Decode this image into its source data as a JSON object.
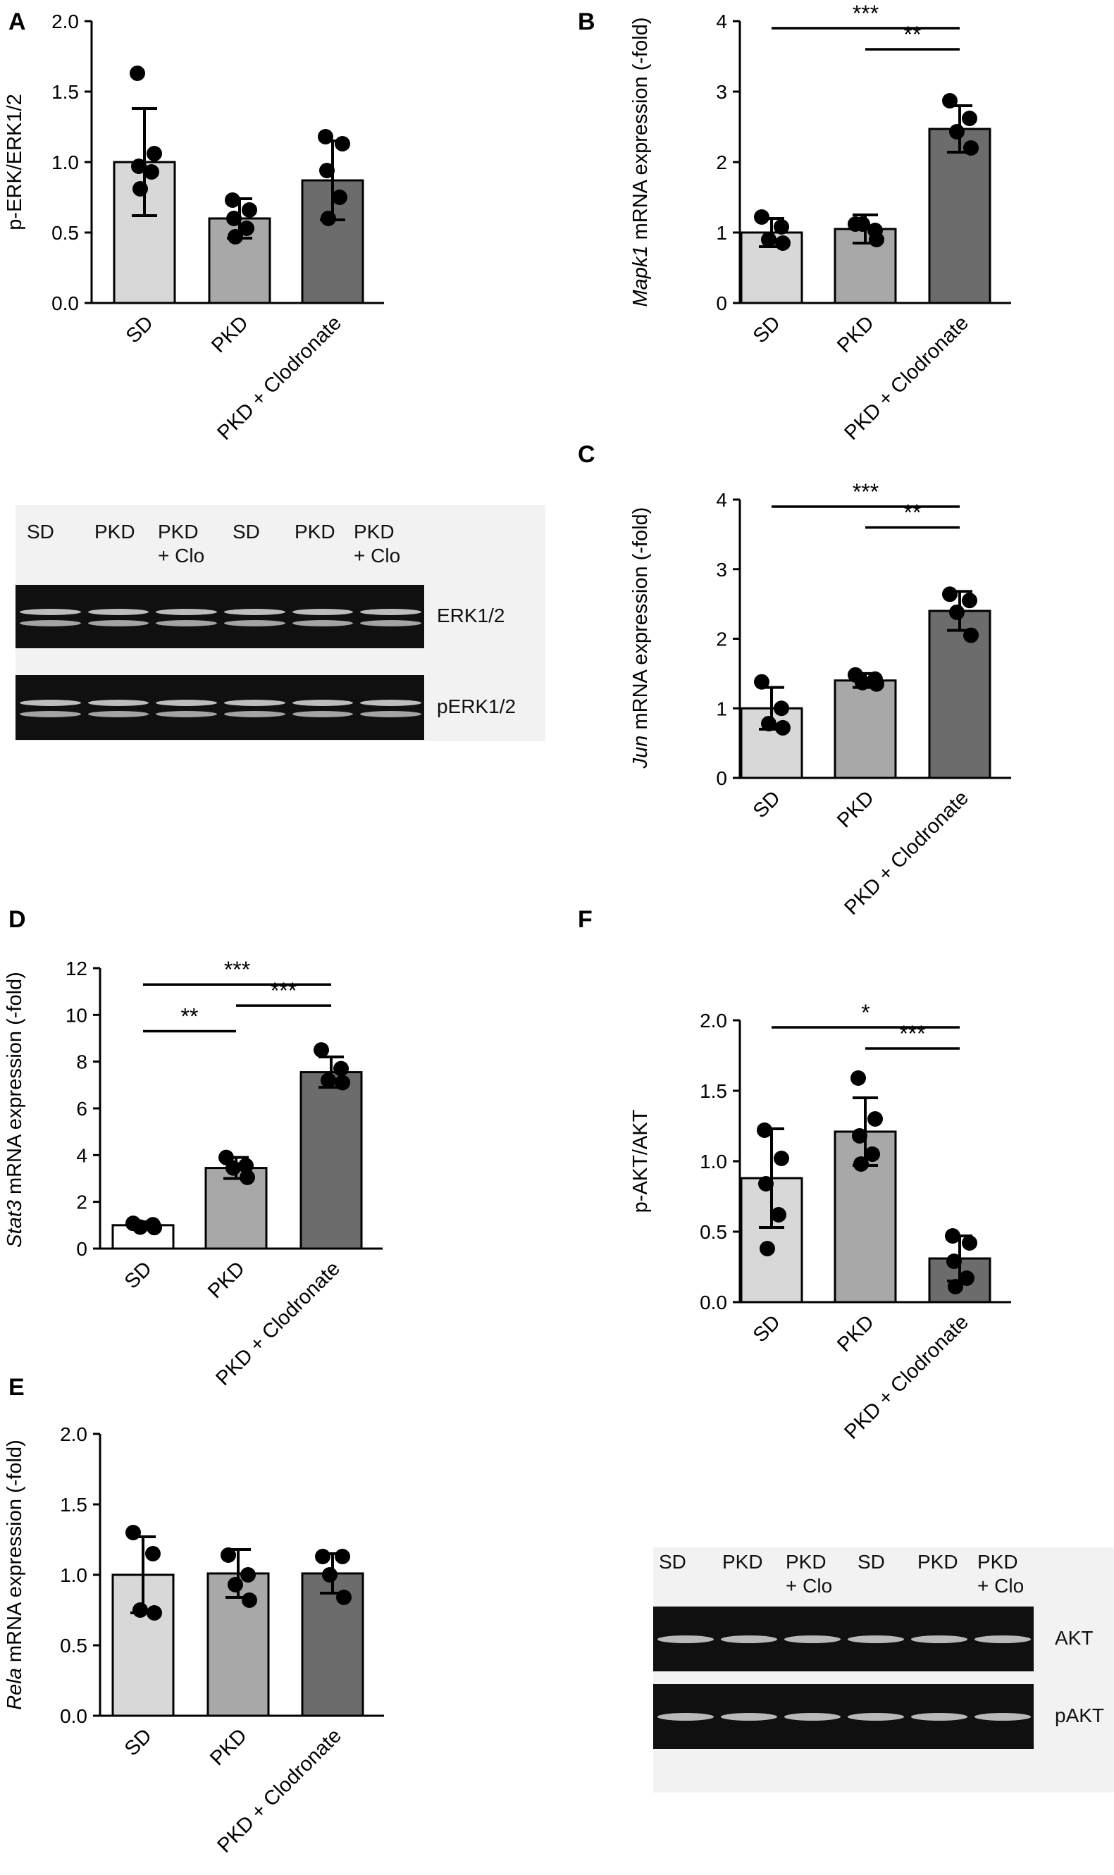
{
  "chart_data": [
    {
      "panel": "A",
      "type": "bar",
      "categories": [
        "SD",
        "PKD",
        "PKD + Clodronate"
      ],
      "ylabel": "p-ERK/ERK1/2",
      "ylim": [
        0,
        2.0
      ],
      "yticks": [
        "0.0",
        "0.5",
        "1.0",
        "1.5",
        "2.0"
      ],
      "values": [
        1.0,
        0.6,
        0.87
      ],
      "error": [
        0.38,
        0.14,
        0.28
      ],
      "points": [
        [
          1.63,
          1.06,
          0.97,
          0.93,
          0.81
        ],
        [
          0.73,
          0.66,
          0.6,
          0.53,
          0.47
        ],
        [
          1.18,
          1.13,
          0.94,
          0.75,
          0.6
        ]
      ],
      "significance": [],
      "colors": [
        "#d8d8d8",
        "#a8a8a8",
        "#6c6c6c"
      ]
    },
    {
      "panel": "B",
      "type": "bar",
      "categories": [
        "SD",
        "PKD",
        "PKD + Clodronate"
      ],
      "ylabel_italic": "Mapk1",
      "ylabel": " mRNA expression (-fold)",
      "ylim": [
        0,
        4
      ],
      "yticks": [
        "0",
        "1",
        "2",
        "3",
        "4"
      ],
      "values": [
        1.0,
        1.05,
        2.47
      ],
      "error": [
        0.2,
        0.2,
        0.33
      ],
      "points": [
        [
          1.22,
          1.08,
          0.9,
          0.85
        ],
        [
          1.12,
          1.03,
          1.12,
          0.9
        ],
        [
          2.87,
          2.62,
          2.43,
          2.2
        ]
      ],
      "significance": [
        {
          "from": 0,
          "to": 2,
          "label": "***"
        },
        {
          "from": 1,
          "to": 2,
          "label": "**"
        }
      ],
      "colors": [
        "#d8d8d8",
        "#a8a8a8",
        "#6c6c6c"
      ]
    },
    {
      "panel": "C",
      "type": "bar",
      "categories": [
        "SD",
        "PKD",
        "PKD + Clodronate"
      ],
      "ylabel_italic": "Jun",
      "ylabel": " mRNA expression (-fold)",
      "ylim": [
        0,
        4
      ],
      "yticks": [
        "0",
        "1",
        "2",
        "3",
        "4"
      ],
      "values": [
        1.0,
        1.4,
        2.4
      ],
      "error": [
        0.3,
        0.1,
        0.28
      ],
      "points": [
        [
          1.38,
          1.0,
          0.78,
          0.72
        ],
        [
          1.48,
          1.42,
          1.37,
          1.35
        ],
        [
          2.64,
          2.55,
          2.38,
          2.05
        ]
      ],
      "significance": [
        {
          "from": 0,
          "to": 2,
          "label": "***"
        },
        {
          "from": 1,
          "to": 2,
          "label": "**"
        }
      ],
      "colors": [
        "#d8d8d8",
        "#a8a8a8",
        "#6c6c6c"
      ]
    },
    {
      "panel": "D",
      "type": "bar",
      "categories": [
        "SD",
        "PKD",
        "PKD + Clodronate"
      ],
      "ylabel_italic": "Stat3",
      "ylabel": " mRNA expression (-fold)",
      "ylim": [
        0,
        12
      ],
      "yticks": [
        "0",
        "2",
        "4",
        "6",
        "8",
        "10",
        "12"
      ],
      "values": [
        1.0,
        3.45,
        7.55
      ],
      "error": [
        0.15,
        0.45,
        0.65
      ],
      "points": [
        [
          1.08,
          1.02,
          0.92,
          0.9
        ],
        [
          3.9,
          3.55,
          3.45,
          3.05
        ],
        [
          8.5,
          7.7,
          7.2,
          7.1
        ]
      ],
      "significance": [
        {
          "from": 0,
          "to": 2,
          "label": "***"
        },
        {
          "from": 0,
          "to": 1,
          "label": "**"
        },
        {
          "from": 1,
          "to": 2,
          "label": "***"
        }
      ],
      "colors": [
        "#ffffff",
        "#a8a8a8",
        "#6c6c6c"
      ]
    },
    {
      "panel": "E",
      "type": "bar",
      "categories": [
        "SD",
        "PKD",
        "PKD + Clodronate"
      ],
      "ylabel_italic": "Rela",
      "ylabel": " mRNA expression (-fold)",
      "ylim": [
        0,
        2.0
      ],
      "yticks": [
        "0.0",
        "0.5",
        "1.0",
        "1.5",
        "2.0"
      ],
      "values": [
        1.0,
        1.01,
        1.01
      ],
      "error": [
        0.27,
        0.17,
        0.14
      ],
      "points": [
        [
          1.3,
          1.15,
          0.75,
          0.73
        ],
        [
          1.14,
          1.0,
          0.93,
          0.82
        ],
        [
          1.13,
          1.13,
          1.0,
          0.84
        ]
      ],
      "significance": [],
      "colors": [
        "#d8d8d8",
        "#a8a8a8",
        "#6c6c6c"
      ]
    },
    {
      "panel": "F",
      "type": "bar",
      "categories": [
        "SD",
        "PKD",
        "PKD + Clodronate"
      ],
      "ylabel": "p-AKT/AKT",
      "ylim": [
        0,
        2.0
      ],
      "yticks": [
        "0.0",
        "0.5",
        "1.0",
        "1.5",
        "2.0"
      ],
      "values": [
        0.88,
        1.21,
        0.31
      ],
      "error": [
        0.35,
        0.24,
        0.16
      ],
      "points": [
        [
          1.22,
          1.02,
          0.84,
          0.62,
          0.38
        ],
        [
          1.59,
          1.3,
          1.18,
          1.05,
          0.98
        ],
        [
          0.47,
          0.42,
          0.29,
          0.17,
          0.11
        ]
      ],
      "significance": [
        {
          "from": 0,
          "to": 2,
          "label": "*"
        },
        {
          "from": 1,
          "to": 2,
          "label": "***"
        }
      ],
      "colors": [
        "#d8d8d8",
        "#a8a8a8",
        "#6c6c6c"
      ]
    }
  ],
  "blots": [
    {
      "id": "erk",
      "lanes": [
        "SD",
        "PKD",
        "PKD\n+ Clo",
        "SD",
        "PKD",
        "PKD\n+ Clo"
      ],
      "strips": [
        {
          "label": "ERK1/2",
          "doublet": true
        },
        {
          "label": "pERK1/2",
          "doublet": true
        }
      ]
    },
    {
      "id": "akt",
      "lanes": [
        "SD",
        "PKD",
        "PKD\n+ Clo",
        "SD",
        "PKD",
        "PKD\n+ Clo"
      ],
      "strips": [
        {
          "label": "AKT",
          "doublet": false
        },
        {
          "label": "pAKT",
          "doublet": false
        }
      ]
    }
  ]
}
